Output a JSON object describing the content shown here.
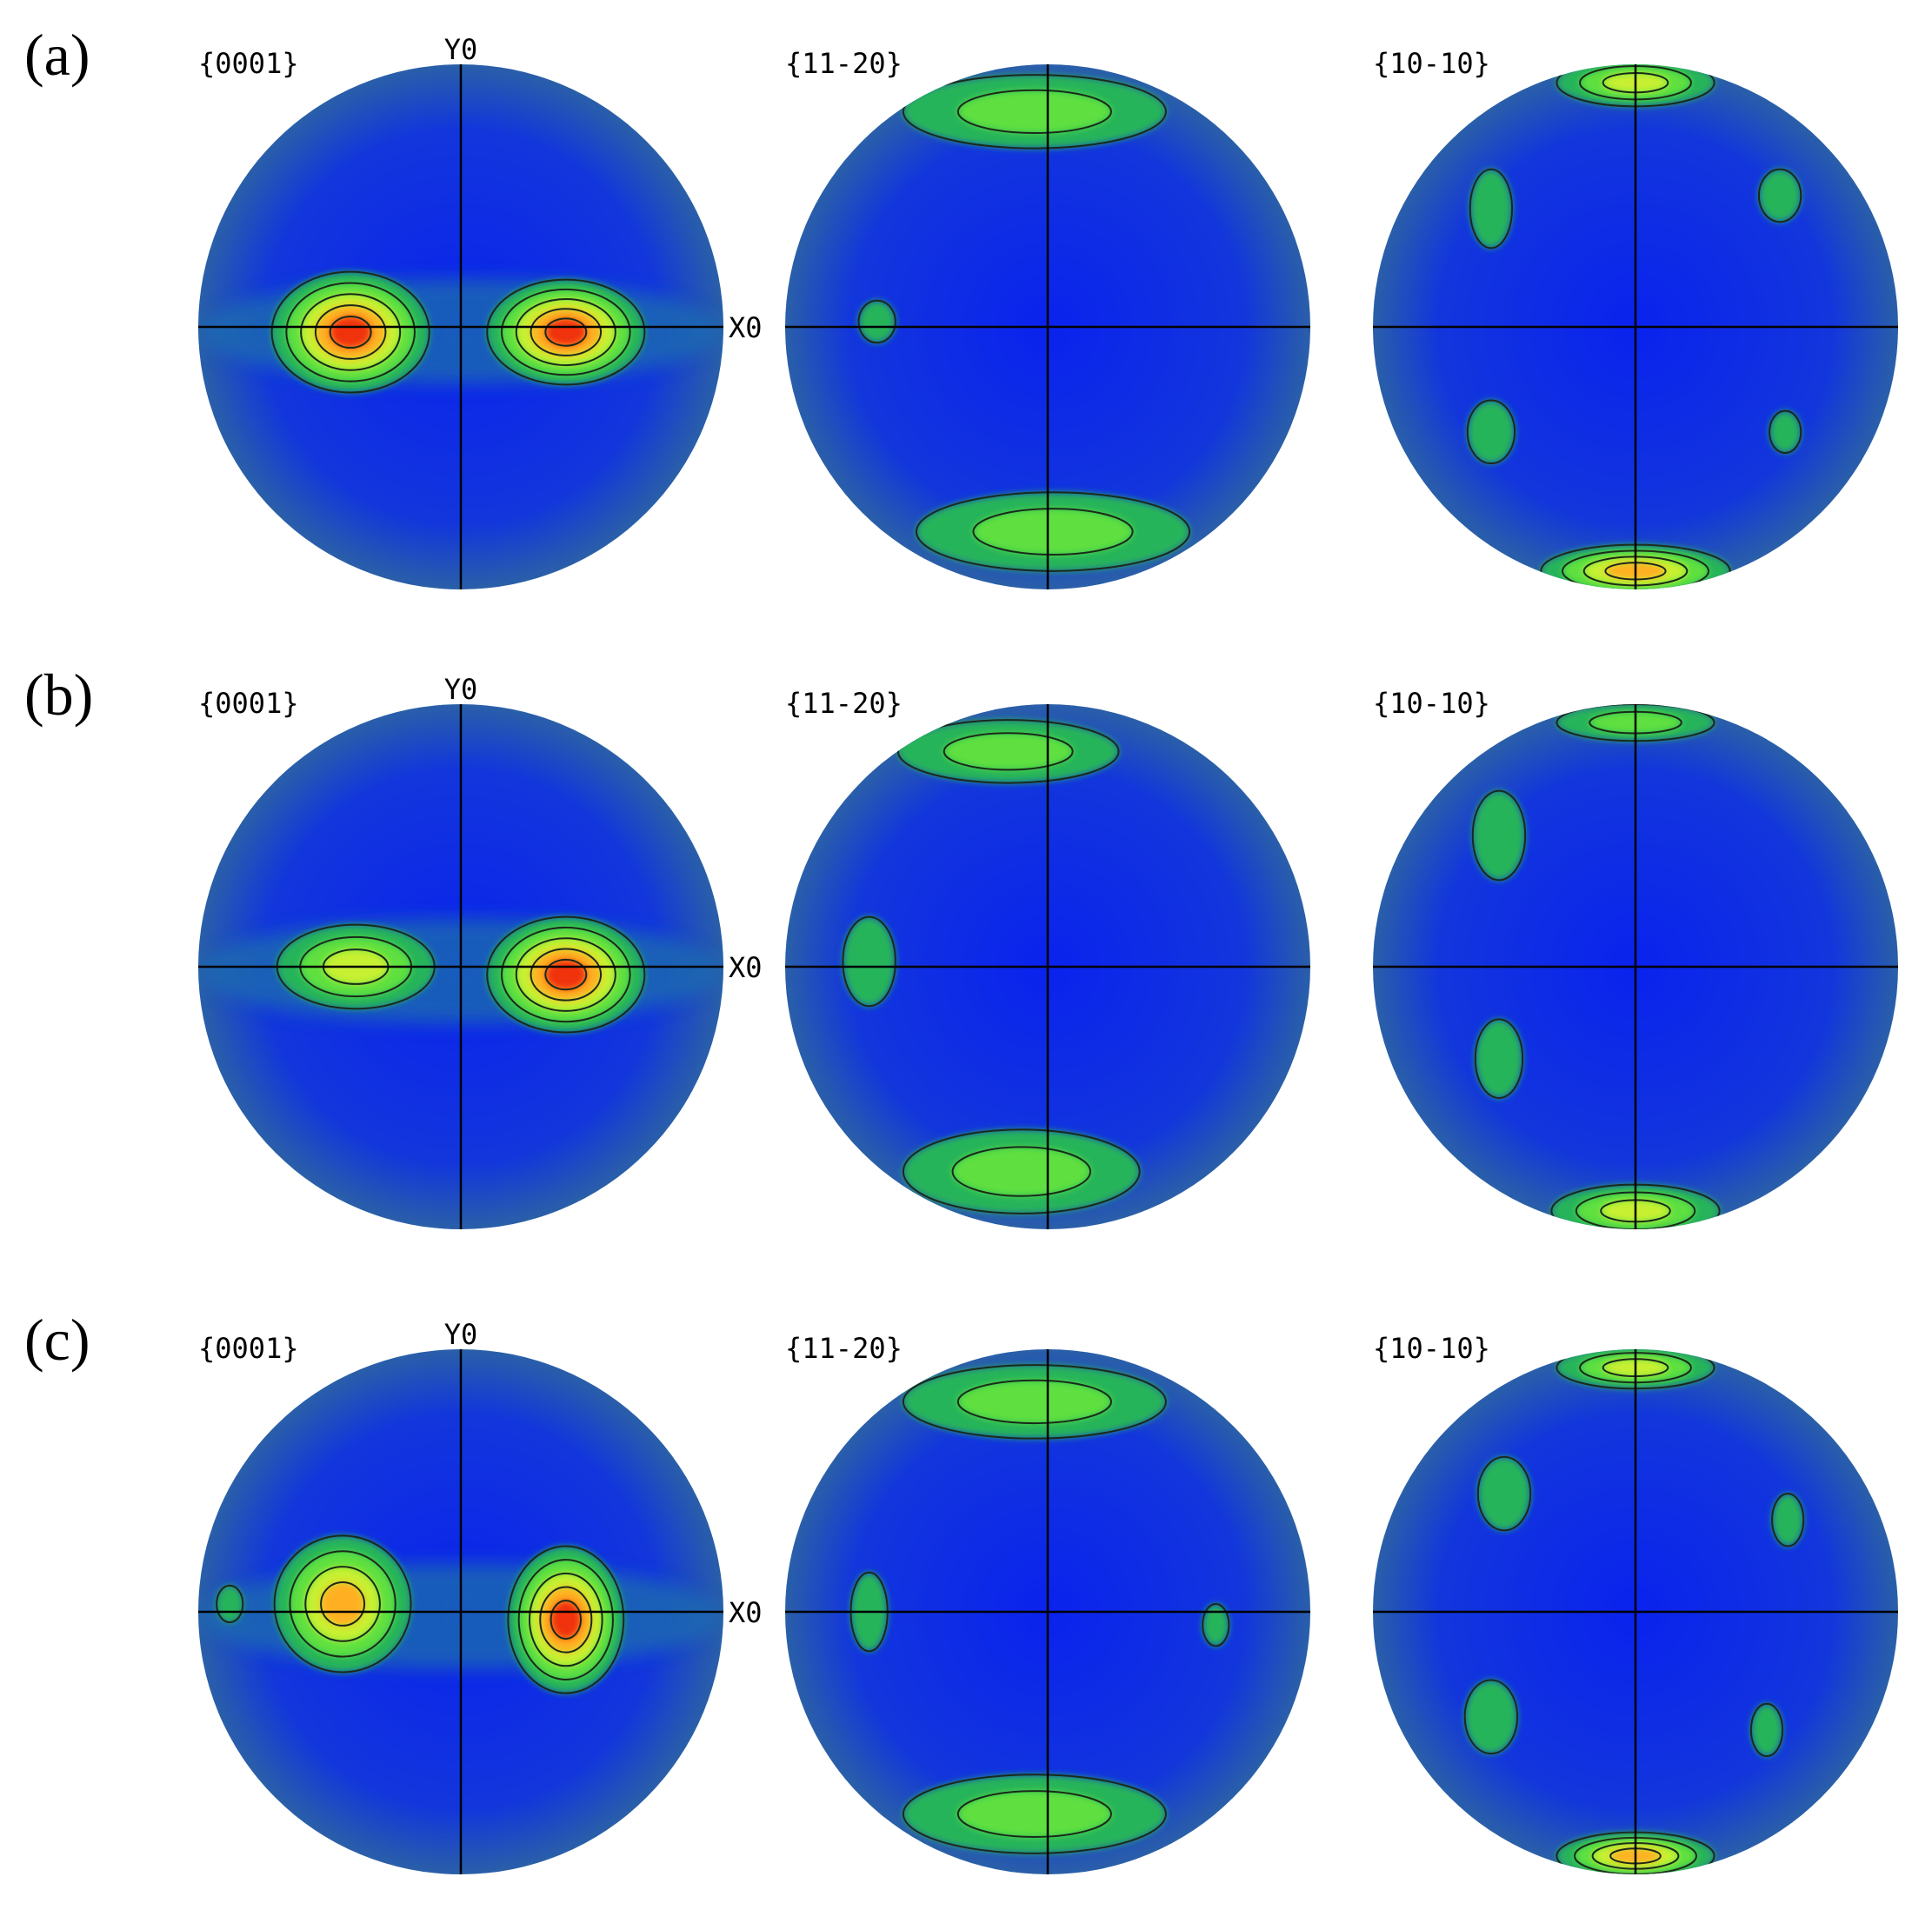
{
  "rows": [
    {
      "label": "(a)",
      "figures": [
        {
          "title": "{0001}",
          "axis_y": "Y0",
          "axis_x": "X0"
        },
        {
          "title": "{11-20}"
        },
        {
          "title": "{10-10}"
        }
      ]
    },
    {
      "label": "(b)",
      "figures": [
        {
          "title": "{0001}",
          "axis_y": "Y0",
          "axis_x": "X0"
        },
        {
          "title": "{11-20}"
        },
        {
          "title": "{10-10}"
        }
      ]
    },
    {
      "label": "(c)",
      "figures": [
        {
          "title": "{0001}",
          "axis_y": "Y0",
          "axis_x": "X0"
        },
        {
          "title": "{11-20}"
        },
        {
          "title": "{10-10}"
        }
      ]
    }
  ]
}
